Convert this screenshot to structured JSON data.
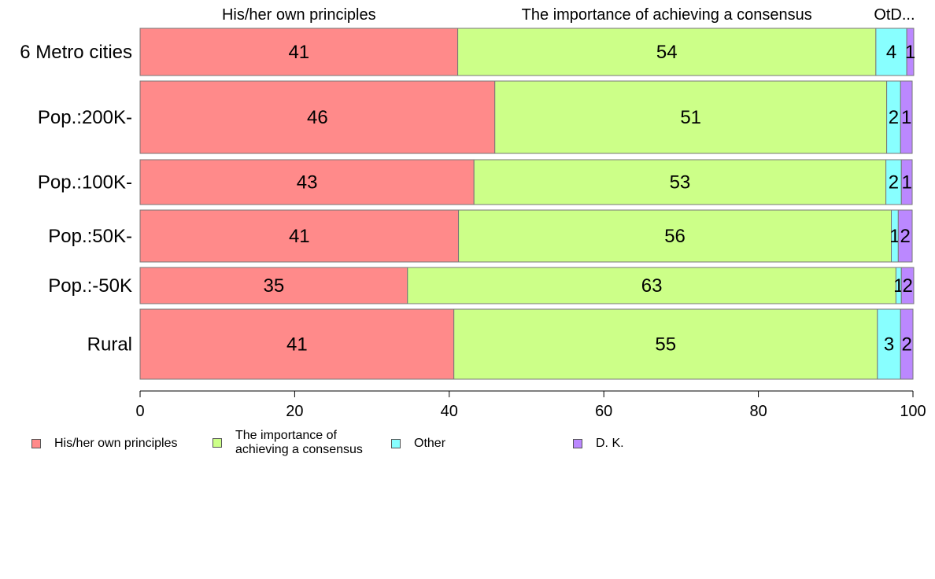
{
  "chart_data": {
    "type": "bar",
    "orientation": "horizontal",
    "stacked": true,
    "categories": [
      "6 Metro cities",
      "Pop.:200K-",
      "Pop.:100K-",
      "Pop.:50K-",
      "Pop.:-50K",
      "Rural"
    ],
    "series": [
      {
        "name": "His/her own principles",
        "color": "#FF8A8A",
        "values": [
          41,
          46,
          43,
          41,
          35,
          41
        ],
        "exact": [
          41.1,
          45.9,
          43.2,
          41.2,
          34.6,
          40.6
        ]
      },
      {
        "name": "The importance of achieving a consensus",
        "color": "#CCFF88",
        "values": [
          54,
          51,
          53,
          56,
          63,
          55
        ],
        "exact": [
          54.1,
          50.7,
          53.3,
          56.0,
          63.2,
          54.8
        ]
      },
      {
        "name": "Other",
        "color": "#88FFFF",
        "values": [
          4,
          2,
          2,
          1,
          1,
          3
        ],
        "exact": [
          4.0,
          1.8,
          2.0,
          0.9,
          0.7,
          3.0
        ]
      },
      {
        "name": "D. K.",
        "color": "#BB88FF",
        "values": [
          1,
          1,
          1,
          2,
          2,
          2
        ],
        "exact": [
          0.9,
          1.5,
          1.4,
          1.8,
          1.6,
          1.6
        ]
      }
    ],
    "top_labels": [
      "His/her own principles",
      "The importance of achieving a consensus",
      "OtD..."
    ],
    "xlim": [
      0,
      100
    ],
    "x_ticks": [
      "0",
      "20",
      "40",
      "60",
      "80",
      "100"
    ],
    "grid": false,
    "legend_position": "bottom-left"
  },
  "legend": {
    "items": [
      {
        "label_lines": [
          "His/her own principles"
        ],
        "color": "#FF8A8A"
      },
      {
        "label_lines": [
          "The importance of",
          "achieving a consensus"
        ],
        "color": "#CCFF88"
      },
      {
        "label_lines": [
          "Other"
        ],
        "color": "#88FFFF"
      },
      {
        "label_lines": [
          "D. K."
        ],
        "color": "#BB88FF"
      }
    ]
  }
}
